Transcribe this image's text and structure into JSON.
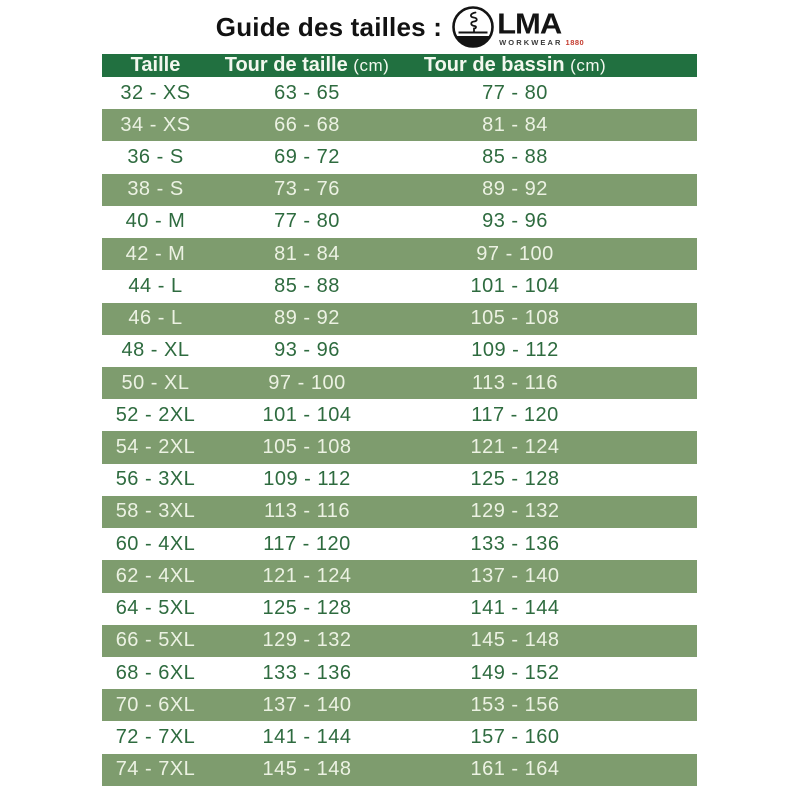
{
  "header": {
    "title": "Guide des tailles :",
    "logo": {
      "brand": "LMA",
      "sub": "WORKWEAR",
      "year": "1880"
    }
  },
  "table": {
    "columns": [
      {
        "label": "Taille",
        "unit": ""
      },
      {
        "label": "Tour de taille",
        "unit": "(cm)"
      },
      {
        "label": "Tour de bassin",
        "unit": "(cm)"
      }
    ],
    "rows": [
      {
        "taille": "32 - XS",
        "tour_de_taille": "63 - 65",
        "tour_de_bassin": "77 - 80"
      },
      {
        "taille": "34 - XS",
        "tour_de_taille": "66 - 68",
        "tour_de_bassin": "81 - 84"
      },
      {
        "taille": "36 - S",
        "tour_de_taille": "69 - 72",
        "tour_de_bassin": "85 - 88"
      },
      {
        "taille": "38 - S",
        "tour_de_taille": "73 - 76",
        "tour_de_bassin": "89 - 92"
      },
      {
        "taille": "40 - M",
        "tour_de_taille": "77 - 80",
        "tour_de_bassin": "93 - 96"
      },
      {
        "taille": "42 - M",
        "tour_de_taille": "81 - 84",
        "tour_de_bassin": "97 - 100"
      },
      {
        "taille": "44 - L",
        "tour_de_taille": "85 - 88",
        "tour_de_bassin": "101 - 104"
      },
      {
        "taille": "46 - L",
        "tour_de_taille": "89 - 92",
        "tour_de_bassin": "105 - 108"
      },
      {
        "taille": "48 - XL",
        "tour_de_taille": "93 - 96",
        "tour_de_bassin": "109 - 112"
      },
      {
        "taille": "50 - XL",
        "tour_de_taille": "97 - 100",
        "tour_de_bassin": "113 - 116"
      },
      {
        "taille": "52 - 2XL",
        "tour_de_taille": "101 - 104",
        "tour_de_bassin": "117 - 120"
      },
      {
        "taille": "54 - 2XL",
        "tour_de_taille": "105 - 108",
        "tour_de_bassin": "121 - 124"
      },
      {
        "taille": "56 - 3XL",
        "tour_de_taille": "109 - 112",
        "tour_de_bassin": "125 - 128"
      },
      {
        "taille": "58 - 3XL",
        "tour_de_taille": "113 - 116",
        "tour_de_bassin": "129 - 132"
      },
      {
        "taille": "60 - 4XL",
        "tour_de_taille": "117 - 120",
        "tour_de_bassin": "133 - 136"
      },
      {
        "taille": "62 - 4XL",
        "tour_de_taille": "121 - 124",
        "tour_de_bassin": "137 - 140"
      },
      {
        "taille": "64 - 5XL",
        "tour_de_taille": "125 - 128",
        "tour_de_bassin": "141 - 144"
      },
      {
        "taille": "66 - 5XL",
        "tour_de_taille": "129 - 132",
        "tour_de_bassin": "145 - 148"
      },
      {
        "taille": "68 - 6XL",
        "tour_de_taille": "133 - 136",
        "tour_de_bassin": "149 - 152"
      },
      {
        "taille": "70 - 6XL",
        "tour_de_taille": "137 - 140",
        "tour_de_bassin": "153 - 156"
      },
      {
        "taille": "72 - 7XL",
        "tour_de_taille": "141 - 144",
        "tour_de_bassin": "157 - 160"
      },
      {
        "taille": "74 - 7XL",
        "tour_de_taille": "145 - 148",
        "tour_de_bassin": "161 - 164"
      }
    ]
  },
  "colors": {
    "header_bg": "#217040",
    "alt_row_bg": "#7e9c6e",
    "dark_text": "#2e6b3f",
    "light_text": "#ecf2e3",
    "year_red": "#c43b2e"
  }
}
